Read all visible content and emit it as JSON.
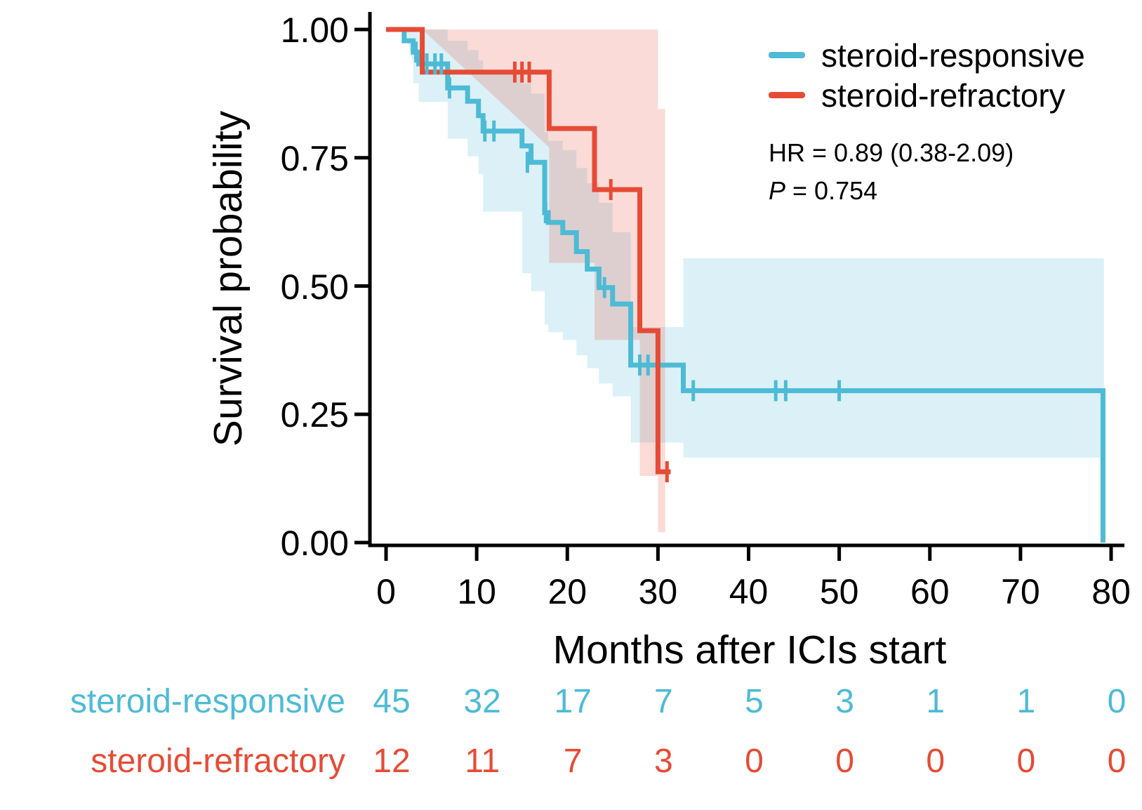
{
  "chart_data": {
    "type": "line",
    "subtype": "kaplan_meier_survival_with_ci_bands",
    "title": "",
    "xlabel": "Months after ICIs start",
    "ylabel": "Survival probability",
    "xlim": [
      0,
      80
    ],
    "ylim": [
      0,
      1
    ],
    "grid": false,
    "legend_position": "top-right",
    "band_opacity": 0.2,
    "axis_color": "#000000",
    "x_ticks": [
      {
        "v": 0,
        "label": "0"
      },
      {
        "v": 10,
        "label": "10"
      },
      {
        "v": 20,
        "label": "20"
      },
      {
        "v": 30,
        "label": "30"
      },
      {
        "v": 40,
        "label": "40"
      },
      {
        "v": 50,
        "label": "50"
      },
      {
        "v": 60,
        "label": "60"
      },
      {
        "v": 70,
        "label": "70"
      },
      {
        "v": 80,
        "label": "80"
      }
    ],
    "y_ticks": [
      {
        "v": 0,
        "label": "0.00"
      },
      {
        "v": 0.25,
        "label": "0.25"
      },
      {
        "v": 0.5,
        "label": "0.50"
      },
      {
        "v": 0.75,
        "label": "0.75"
      },
      {
        "v": 1,
        "label": "1.00"
      }
    ],
    "stats": {
      "hr": "HR = 0.89 (0.38-2.09)",
      "p_label": "P",
      "p_value": " = 0.754"
    },
    "series": [
      {
        "name": "steroid-responsive",
        "color": "#4DBBD5",
        "steps": [
          [
            0,
            1.0
          ],
          [
            2,
            0.978
          ],
          [
            3,
            0.956
          ],
          [
            3.6,
            0.933
          ],
          [
            6.8,
            0.886
          ],
          [
            9,
            0.86
          ],
          [
            10.2,
            0.832
          ],
          [
            10.7,
            0.802
          ],
          [
            15,
            0.773
          ],
          [
            16,
            0.741
          ],
          [
            17.5,
            0.643
          ],
          [
            17.9,
            0.624
          ],
          [
            19.5,
            0.604
          ],
          [
            21,
            0.567
          ],
          [
            22.2,
            0.533
          ],
          [
            23.5,
            0.497
          ],
          [
            25,
            0.465
          ],
          [
            27,
            0.346
          ],
          [
            32.8,
            0.296
          ],
          [
            79.1,
            0.0
          ]
        ],
        "end_time": 79.1,
        "censors": [
          [
            3.3,
            0.956
          ],
          [
            4.5,
            0.933
          ],
          [
            5.4,
            0.933
          ],
          [
            6.1,
            0.933
          ],
          [
            7.0,
            0.886
          ],
          [
            10.9,
            0.802
          ],
          [
            11.9,
            0.802
          ],
          [
            15.6,
            0.741
          ],
          [
            17.6,
            0.643
          ],
          [
            24.1,
            0.497
          ],
          [
            28.0,
            0.346
          ],
          [
            28.9,
            0.346
          ],
          [
            33.9,
            0.296
          ],
          [
            43.0,
            0.296
          ],
          [
            44.1,
            0.296
          ],
          [
            50.0,
            0.296
          ]
        ],
        "ci_band": [
          [
            2,
            0.935,
            1.0
          ],
          [
            3,
            0.895,
            1.0
          ],
          [
            3.6,
            0.859,
            1.0
          ],
          [
            6.8,
            0.787,
            0.978
          ],
          [
            9,
            0.753,
            0.96
          ],
          [
            10.2,
            0.718,
            0.94
          ],
          [
            10.7,
            0.645,
            0.915
          ],
          [
            15,
            0.525,
            0.895
          ],
          [
            16,
            0.49,
            0.875
          ],
          [
            17.5,
            0.425,
            0.8
          ],
          [
            17.9,
            0.41,
            0.783
          ],
          [
            19.5,
            0.395,
            0.765
          ],
          [
            21,
            0.365,
            0.73
          ],
          [
            22.2,
            0.34,
            0.7
          ],
          [
            23.5,
            0.31,
            0.662
          ],
          [
            25,
            0.285,
            0.605
          ],
          [
            27,
            0.195,
            0.42
          ],
          [
            32.8,
            0.166,
            0.554
          ]
        ],
        "ci_end": 79.2
      },
      {
        "name": "steroid-refractory",
        "color": "#E64B35",
        "steps": [
          [
            0,
            1.0
          ],
          [
            4,
            0.917
          ],
          [
            18,
            0.807
          ],
          [
            23,
            0.688
          ],
          [
            28,
            0.413
          ],
          [
            30,
            0.138
          ]
        ],
        "end_time": 31.4,
        "censors": [
          [
            14.2,
            0.917
          ],
          [
            15.0,
            0.917
          ],
          [
            15.8,
            0.917
          ],
          [
            24.8,
            0.688
          ],
          [
            31.0,
            0.138
          ]
        ],
        "ci_band": [
          [
            4,
            0.77,
            1.0
          ],
          [
            18,
            0.545,
            1.0
          ],
          [
            23,
            0.395,
            1.0
          ],
          [
            28,
            0.13,
            1.0
          ],
          [
            30,
            0.02,
            0.845
          ]
        ],
        "ci_end": 30.8
      }
    ]
  },
  "risk_table": {
    "times": [
      0,
      10,
      20,
      30,
      40,
      50,
      60,
      70,
      80
    ],
    "rows": [
      {
        "label": "steroid-responsive",
        "color": "#4DBBD5",
        "counts": [
          "45",
          "32",
          "17",
          "7",
          "5",
          "3",
          "1",
          "1",
          "0"
        ]
      },
      {
        "label": "steroid-refractory",
        "color": "#E64B35",
        "counts": [
          "12",
          "11",
          "7",
          "3",
          "0",
          "0",
          "0",
          "0",
          "0"
        ]
      }
    ]
  }
}
